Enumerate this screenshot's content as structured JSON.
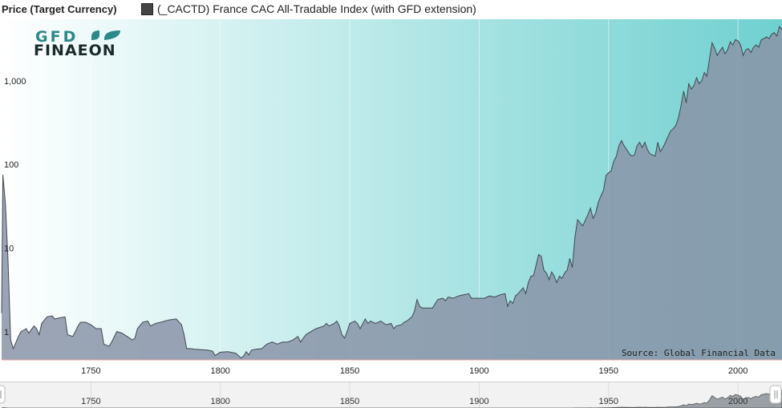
{
  "header": {
    "y_axis_title": "Price (Target Currency)",
    "legend_label": "(_CACTD) France CAC All-Tradable Index (with GFD extension)",
    "legend_color": "#444444"
  },
  "logo": {
    "line1": "GFD",
    "line2": "FINAEON",
    "color": "#1a2a2a",
    "leaf_color": "#2a8a88"
  },
  "source": "Source: Global Financial Data",
  "colors": {
    "gradient_left": "#ffffff",
    "gradient_right": "#6fd0d0",
    "area_fill": "#8a94a8",
    "line": "#404850"
  },
  "navigator": {
    "ticks": [
      "1750",
      "1800",
      "1850",
      "1900",
      "1950",
      "2000"
    ]
  },
  "chart_data": {
    "type": "area",
    "y_scale": "log",
    "ylim": [
      0.55,
      6500
    ],
    "xlim": [
      1715.5,
      2017
    ],
    "y_ticks": [
      {
        "value": 1,
        "label": "1"
      },
      {
        "value": 10,
        "label": "10"
      },
      {
        "value": 100,
        "label": "100"
      },
      {
        "value": 1000,
        "label": "1,000"
      }
    ],
    "x_ticks": [
      1750,
      1800,
      1850,
      1900,
      1950,
      2000
    ],
    "grid": "vertical",
    "legend_position": "top-left",
    "series": [
      {
        "name": "(_CACTD) France CAC All-Tradable Index (with GFD extension)",
        "points": [
          [
            1715.5,
            2.0
          ],
          [
            1716,
            90
          ],
          [
            1717,
            40
          ],
          [
            1718,
            8
          ],
          [
            1719,
            0.95
          ],
          [
            1720,
            0.75
          ],
          [
            1722,
            1.05
          ],
          [
            1723,
            1.2
          ],
          [
            1725,
            1.3
          ],
          [
            1726,
            1.15
          ],
          [
            1728,
            1.4
          ],
          [
            1729,
            1.3
          ],
          [
            1730,
            1.1
          ],
          [
            1731,
            1.5
          ],
          [
            1733,
            1.8
          ],
          [
            1735,
            1.85
          ],
          [
            1736,
            1.7
          ],
          [
            1738,
            1.75
          ],
          [
            1740,
            1.8
          ],
          [
            1741,
            1.1
          ],
          [
            1743,
            1.05
          ],
          [
            1744,
            1.2
          ],
          [
            1745,
            1.4
          ],
          [
            1746,
            1.55
          ],
          [
            1748,
            1.55
          ],
          [
            1750,
            1.45
          ],
          [
            1752,
            1.3
          ],
          [
            1754,
            1.3
          ],
          [
            1755,
            0.85
          ],
          [
            1757,
            0.8
          ],
          [
            1758,
            0.9
          ],
          [
            1760,
            1.2
          ],
          [
            1762,
            1.15
          ],
          [
            1764,
            1.05
          ],
          [
            1766,
            0.95
          ],
          [
            1767,
            1.0
          ],
          [
            1768,
            1.3
          ],
          [
            1770,
            1.55
          ],
          [
            1772,
            1.6
          ],
          [
            1773,
            1.4
          ],
          [
            1775,
            1.5
          ],
          [
            1777,
            1.55
          ],
          [
            1780,
            1.65
          ],
          [
            1783,
            1.7
          ],
          [
            1785,
            1.45
          ],
          [
            1786,
            1.1
          ],
          [
            1787,
            0.75
          ],
          [
            1788,
            0.75
          ],
          [
            1790,
            0.74
          ],
          [
            1795,
            0.72
          ],
          [
            1797,
            0.7
          ],
          [
            1798,
            0.62
          ],
          [
            1800,
            0.68
          ],
          [
            1803,
            0.69
          ],
          [
            1806,
            0.66
          ],
          [
            1807,
            0.62
          ],
          [
            1808,
            0.58
          ],
          [
            1809,
            0.61
          ],
          [
            1810,
            0.69
          ],
          [
            1811,
            0.63
          ],
          [
            1812,
            0.72
          ],
          [
            1814,
            0.74
          ],
          [
            1816,
            0.75
          ],
          [
            1818,
            0.85
          ],
          [
            1820,
            0.9
          ],
          [
            1822,
            0.85
          ],
          [
            1824,
            0.9
          ],
          [
            1826,
            0.9
          ],
          [
            1828,
            0.95
          ],
          [
            1830,
            1.05
          ],
          [
            1831,
            0.9
          ],
          [
            1833,
            1.1
          ],
          [
            1835,
            1.2
          ],
          [
            1837,
            1.3
          ],
          [
            1840,
            1.4
          ],
          [
            1841,
            1.5
          ],
          [
            1842,
            1.4
          ],
          [
            1844,
            1.5
          ],
          [
            1845,
            1.6
          ],
          [
            1846,
            1.4
          ],
          [
            1847,
            1.1
          ],
          [
            1848,
            1.0
          ],
          [
            1849,
            1.2
          ],
          [
            1850,
            1.5
          ],
          [
            1852,
            1.6
          ],
          [
            1853,
            1.5
          ],
          [
            1854,
            1.3
          ],
          [
            1856,
            1.7
          ],
          [
            1857,
            1.5
          ],
          [
            1858,
            1.6
          ],
          [
            1860,
            1.5
          ],
          [
            1862,
            1.6
          ],
          [
            1864,
            1.45
          ],
          [
            1866,
            1.5
          ],
          [
            1867,
            1.3
          ],
          [
            1868,
            1.4
          ],
          [
            1870,
            1.45
          ],
          [
            1871,
            1.55
          ],
          [
            1872,
            1.6
          ],
          [
            1874,
            1.8
          ],
          [
            1875,
            2.1
          ],
          [
            1876,
            2.9
          ],
          [
            1877,
            2.4
          ],
          [
            1878,
            2.3
          ],
          [
            1880,
            2.3
          ],
          [
            1882,
            2.3
          ],
          [
            1884,
            2.9
          ],
          [
            1886,
            3.0
          ],
          [
            1887,
            2.8
          ],
          [
            1888,
            3.1
          ],
          [
            1890,
            3.0
          ],
          [
            1892,
            3.2
          ],
          [
            1894,
            3.3
          ],
          [
            1896,
            3.4
          ],
          [
            1897,
            3.0
          ],
          [
            1900,
            3.0
          ],
          [
            1902,
            3.0
          ],
          [
            1904,
            3.2
          ],
          [
            1906,
            3.1
          ],
          [
            1908,
            3.3
          ],
          [
            1910,
            3.4
          ],
          [
            1911,
            2.4
          ],
          [
            1912,
            2.8
          ],
          [
            1913,
            2.6
          ],
          [
            1914,
            3.2
          ],
          [
            1915,
            3.4
          ],
          [
            1917,
            4.0
          ],
          [
            1918,
            3.4
          ],
          [
            1919,
            4.6
          ],
          [
            1920,
            5.5
          ],
          [
            1921,
            5.6
          ],
          [
            1922,
            7.5
          ],
          [
            1923,
            10
          ],
          [
            1924,
            9.5
          ],
          [
            1925,
            6.5
          ],
          [
            1926,
            6.0
          ],
          [
            1927,
            5.0
          ],
          [
            1928,
            6.2
          ],
          [
            1929,
            5.5
          ],
          [
            1930,
            4.6
          ],
          [
            1931,
            5.5
          ],
          [
            1932,
            5.2
          ],
          [
            1933,
            6.0
          ],
          [
            1934,
            6.5
          ],
          [
            1935,
            9.0
          ],
          [
            1936,
            7.0
          ],
          [
            1937,
            16
          ],
          [
            1938,
            26
          ],
          [
            1939,
            24
          ],
          [
            1940,
            22
          ],
          [
            1942,
            30
          ],
          [
            1943,
            36
          ],
          [
            1944,
            27
          ],
          [
            1945,
            31
          ],
          [
            1946,
            42
          ],
          [
            1947,
            50
          ],
          [
            1948,
            58
          ],
          [
            1949,
            88
          ],
          [
            1950,
            95
          ],
          [
            1951,
            100
          ],
          [
            1952,
            130
          ],
          [
            1953,
            150
          ],
          [
            1954,
            200
          ],
          [
            1955,
            230
          ],
          [
            1956,
            200
          ],
          [
            1957,
            180
          ],
          [
            1958,
            160
          ],
          [
            1959,
            150
          ],
          [
            1960,
            155
          ],
          [
            1961,
            200
          ],
          [
            1962,
            220
          ],
          [
            1963,
            190
          ],
          [
            1964,
            220
          ],
          [
            1965,
            180
          ],
          [
            1966,
            160
          ],
          [
            1967,
            155
          ],
          [
            1968,
            150
          ],
          [
            1969,
            220
          ],
          [
            1970,
            170
          ],
          [
            1971,
            190
          ],
          [
            1972,
            220
          ],
          [
            1973,
            260
          ],
          [
            1974,
            300
          ],
          [
            1975,
            320
          ],
          [
            1976,
            350
          ],
          [
            1977,
            430
          ],
          [
            1978,
            600
          ],
          [
            1979,
            900
          ],
          [
            1980,
            650
          ],
          [
            1981,
            1100
          ],
          [
            1982,
            950
          ],
          [
            1983,
            1050
          ],
          [
            1984,
            1300
          ],
          [
            1985,
            1100
          ],
          [
            1986,
            1200
          ],
          [
            1987,
            1500
          ],
          [
            1988,
            1350
          ],
          [
            1989,
            2200
          ],
          [
            1990,
            3400
          ],
          [
            1991,
            2900
          ],
          [
            1992,
            2400
          ],
          [
            1993,
            2700
          ],
          [
            1994,
            3000
          ],
          [
            1995,
            2500
          ],
          [
            1996,
            2800
          ],
          [
            1997,
            3500
          ],
          [
            1998,
            3200
          ],
          [
            1999,
            3700
          ],
          [
            2000,
            3600
          ],
          [
            2001,
            3200
          ],
          [
            2002,
            2400
          ],
          [
            2003,
            2800
          ],
          [
            2004,
            2900
          ],
          [
            2005,
            2600
          ],
          [
            2006,
            3000
          ],
          [
            2007,
            3200
          ],
          [
            2008,
            3000
          ],
          [
            2009,
            3700
          ],
          [
            2010,
            3800
          ],
          [
            2011,
            4000
          ],
          [
            2012,
            3800
          ],
          [
            2013,
            4300
          ],
          [
            2014,
            4500
          ],
          [
            2015,
            4100
          ],
          [
            2016,
            5300
          ],
          [
            2017,
            4900
          ]
        ]
      }
    ]
  }
}
